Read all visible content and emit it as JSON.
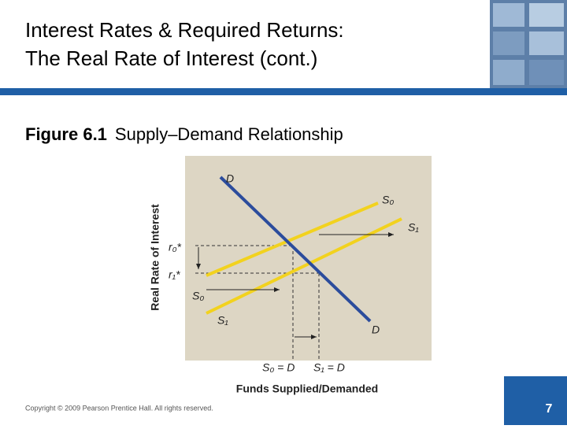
{
  "header": {
    "title_line1": "Interest Rates & Required Returns:",
    "title_line2": "The Real Rate of Interest (cont.)"
  },
  "figure": {
    "number": "Figure 6.1",
    "caption": "Supply–Demand Relationship",
    "y_axis_title": "Real Rate of Interest",
    "x_axis_title": "Funds Supplied/Demanded",
    "labels": {
      "d_top": "D",
      "d_bottom": "D",
      "s0_right": "S₀",
      "s1_right": "S₁",
      "s0_left": "S₀",
      "s1_left": "S₁",
      "r0": "r₀*",
      "r1": "r₁*",
      "s0_eq": "S₀ = D",
      "s1_eq": "S₁ = D"
    }
  },
  "footer": {
    "copyright": "Copyright © 2009 Pearson Prentice Hall. All rights reserved.",
    "page": "7"
  }
}
